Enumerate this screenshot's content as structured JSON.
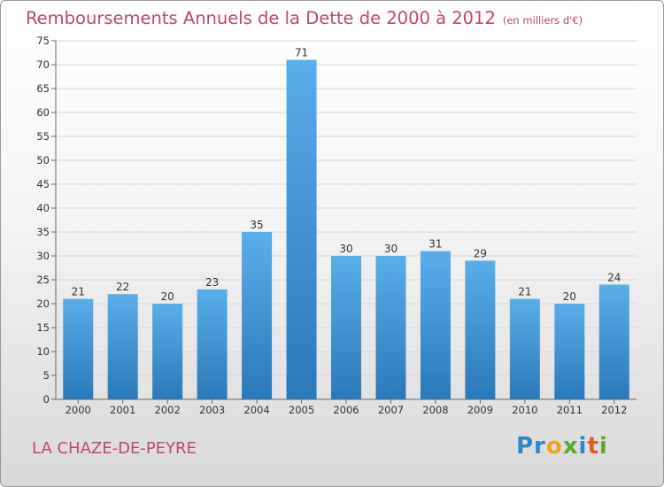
{
  "title": "Remboursements Annuels de la Dette de 2000 à 2012",
  "subtitle": "(en milliers d'€)",
  "commune": "LA CHAZE-DE-PEYRE",
  "logo": {
    "p1": "Pr",
    "p2": "o",
    "p3": "x",
    "p4": "i",
    "p5": "t",
    "p6": "i"
  },
  "colors": {
    "title": "#c0476e",
    "bar_light": "#5aaee8",
    "bar_dark": "#2b78b8"
  },
  "chart_data": {
    "type": "bar",
    "title": "Remboursements Annuels de la Dette de 2000 à 2012",
    "subtitle": "(en milliers d'€)",
    "categories": [
      "2000",
      "2001",
      "2002",
      "2003",
      "2004",
      "2005",
      "2006",
      "2007",
      "2008",
      "2009",
      "2010",
      "2011",
      "2012"
    ],
    "values": [
      21,
      22,
      20,
      23,
      35,
      71,
      30,
      30,
      31,
      29,
      21,
      20,
      24
    ],
    "ylim": [
      0,
      75
    ],
    "yticks": [
      0,
      5,
      10,
      15,
      20,
      25,
      30,
      35,
      40,
      45,
      50,
      55,
      60,
      65,
      70,
      75
    ],
    "grid": true,
    "data_labels": true
  }
}
